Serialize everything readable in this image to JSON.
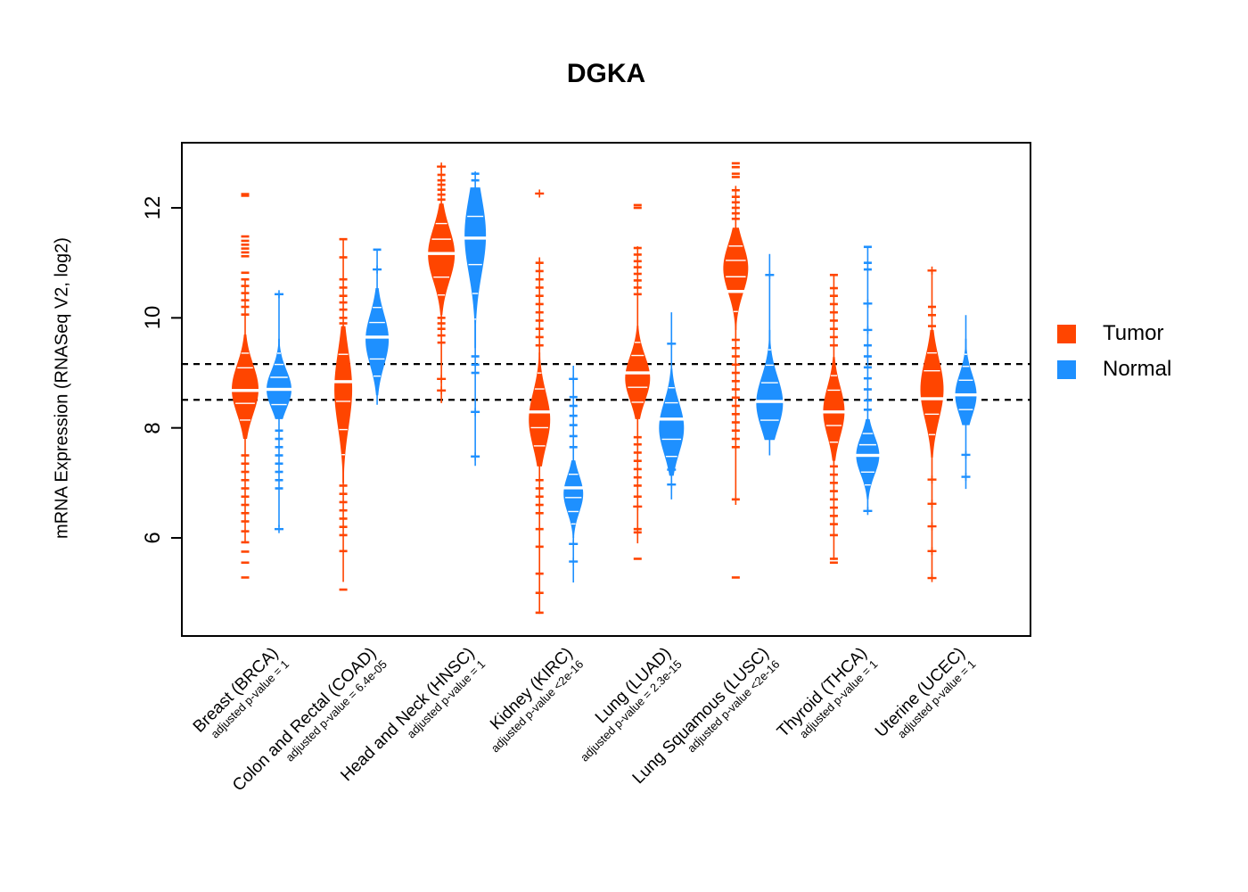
{
  "chart_data": {
    "type": "violin",
    "title": "DGKA",
    "ylabel": "mRNA Expression (RNASeq V2, log2)",
    "yticks": [
      12,
      10,
      8,
      6
    ],
    "ylim": [
      4.2,
      13.2
    ],
    "grid": false,
    "legend_position": "right",
    "reference_lines": [
      9.16,
      8.51
    ],
    "legend": [
      {
        "label": "Tumor",
        "color": "#FF4500"
      },
      {
        "label": "Normal",
        "color": "#1E90FF"
      }
    ],
    "groups": [
      {
        "label": "Breast (BRCA)",
        "pvalue": "adjusted p-value = 1",
        "tumor": {
          "median": 8.68,
          "body": [
            7.8,
            9.7
          ],
          "peak": 8.7,
          "halfWidth": 15,
          "line": [
            5.9,
            10.7
          ],
          "dashes": [
            12.25,
            12.22,
            11.48,
            11.4,
            11.33,
            11.26,
            11.19,
            11.12,
            10.82,
            10.7,
            10.58,
            10.45,
            10.32,
            10.2,
            10.06,
            7.5,
            7.35,
            7.2,
            7.05,
            6.9,
            6.75,
            6.6,
            6.45,
            6.3,
            6.12,
            5.92,
            5.75,
            5.55,
            5.28
          ],
          "plusses": []
        },
        "normal": {
          "median": 8.7,
          "body": [
            8.16,
            9.62
          ],
          "peak": 8.7,
          "halfWidth": 14,
          "line": [
            6.2,
            10.43
          ],
          "dashes": [
            7.95,
            7.8,
            7.65,
            7.5,
            7.35,
            7.2,
            7.05,
            6.9
          ],
          "plusses": [
            10.43,
            6.16
          ]
        }
      },
      {
        "label": "Colon and Rectal (COAD)",
        "pvalue": "adjusted p-value = 6.4e-05",
        "tumor": {
          "median": 8.84,
          "body": [
            7.0,
            9.85
          ],
          "peak": 8.7,
          "halfWidth": 10,
          "line": [
            5.2,
            11.43
          ],
          "dashes": [
            11.43,
            11.1,
            10.7,
            10.55,
            10.4,
            10.28,
            10.15,
            10.0,
            9.9,
            6.95,
            6.8,
            6.65,
            6.5,
            6.35,
            6.2,
            6.05,
            5.76,
            5.06
          ],
          "plusses": []
        },
        "normal": {
          "median": 9.65,
          "body": [
            8.59,
            10.54
          ],
          "peak": 9.6,
          "halfWidth": 13,
          "line": [
            8.42,
            11.24
          ],
          "dashes": [
            11.24
          ],
          "plusses": [
            10.88
          ]
        }
      },
      {
        "label": "Head and Neck (HNSC)",
        "pvalue": "adjusted p-value = 1",
        "tumor": {
          "median": 11.17,
          "body": [
            10.05,
            12.08
          ],
          "peak": 11.15,
          "halfWidth": 15,
          "line": [
            8.45,
            12.78
          ],
          "dashes": [
            12.6,
            12.5,
            12.42,
            12.33,
            12.24,
            12.15,
            10.0,
            9.9,
            9.8,
            9.68,
            9.55
          ],
          "plusses": [
            12.75,
            8.89,
            8.68
          ]
        },
        "normal": {
          "median": 11.45,
          "body": [
            9.45,
            12.37
          ],
          "peak": 11.5,
          "halfWidth": 12,
          "line": [
            7.31,
            12.66
          ],
          "dashes": [
            12.62,
            12.5,
            9.3,
            9.15,
            9.0
          ],
          "plusses": [
            8.29,
            7.48
          ]
        }
      },
      {
        "label": "Kidney (KIRC)",
        "pvalue": "adjusted p-value <2e-16",
        "tumor": {
          "median": 8.29,
          "body": [
            7.3,
            9.37
          ],
          "peak": 8.15,
          "halfWidth": 12,
          "line": [
            4.62,
            11.1
          ],
          "dashes": [
            11.0,
            10.85,
            10.7,
            10.55,
            10.4,
            10.25,
            10.1,
            9.95,
            9.8,
            9.65,
            9.5,
            7.05,
            6.9,
            6.75,
            6.6,
            6.45,
            6.16,
            5.84,
            5.35,
            5.0,
            4.64
          ],
          "plusses": [
            12.26
          ]
        },
        "normal": {
          "median": 6.91,
          "body": [
            6.0,
            7.41
          ],
          "peak": 6.8,
          "halfWidth": 11,
          "line": [
            5.19,
            9.13
          ],
          "dashes": [
            8.56,
            8.4,
            8.22,
            8.05,
            7.85,
            7.65
          ],
          "plusses": [
            8.89,
            5.89,
            5.57
          ]
        }
      },
      {
        "label": "Lung (LUAD)",
        "pvalue": "adjusted p-value = 2.3e-15",
        "tumor": {
          "median": 9.0,
          "body": [
            8.16,
            9.86
          ],
          "peak": 8.9,
          "halfWidth": 14,
          "line": [
            5.9,
            11.3
          ],
          "dashes": [
            12.05,
            12.0,
            11.27,
            11.15,
            11.03,
            10.92,
            10.8,
            10.68,
            10.55,
            10.43,
            7.83,
            7.7,
            7.55,
            7.4,
            7.25,
            7.1,
            6.95,
            6.75,
            6.16,
            6.1,
            5.62
          ],
          "plusses": [
            6.57
          ]
        },
        "normal": {
          "median": 8.16,
          "body": [
            7.13,
            9.08
          ],
          "peak": 8.0,
          "halfWidth": 14,
          "line": [
            6.7,
            10.1
          ],
          "dashes": [],
          "plusses": [
            9.53,
            7.24,
            6.97
          ]
        }
      },
      {
        "label": "Lung Squamous (LUSC)",
        "pvalue": "adjusted p-value <2e-16",
        "tumor": {
          "median": 10.48,
          "body": [
            9.78,
            11.64
          ],
          "peak": 10.9,
          "halfWidth": 14,
          "line": [
            6.6,
            12.4
          ],
          "dashes": [
            12.81,
            12.74,
            12.62,
            12.56,
            12.32,
            12.2,
            12.1,
            12.0,
            11.9,
            11.8,
            9.6,
            9.45,
            9.3,
            9.15,
            9.0,
            8.85,
            8.7,
            8.55,
            8.4,
            8.25,
            8.1,
            7.95,
            7.8,
            7.65,
            6.7,
            5.28
          ],
          "plusses": []
        },
        "normal": {
          "median": 8.48,
          "body": [
            7.78,
            9.78
          ],
          "peak": 8.45,
          "halfWidth": 15,
          "line": [
            7.5,
            11.16
          ],
          "dashes": [],
          "plusses": [
            10.78
          ]
        }
      },
      {
        "label": "Thyroid (THCA)",
        "pvalue": "adjusted p-value = 1",
        "tumor": {
          "median": 8.29,
          "body": [
            7.4,
            9.29
          ],
          "peak": 8.3,
          "halfWidth": 12,
          "line": [
            5.6,
            10.78
          ],
          "dashes": [
            10.78,
            10.54,
            10.4,
            10.25,
            10.1,
            9.95,
            9.8,
            9.65,
            9.5,
            7.3,
            7.15,
            7.0,
            6.85,
            6.7,
            6.55,
            6.4,
            6.25,
            6.05,
            5.62,
            5.55
          ],
          "plusses": []
        },
        "normal": {
          "median": 7.5,
          "body": [
            6.7,
            8.16
          ],
          "peak": 7.5,
          "halfWidth": 13,
          "line": [
            6.49,
            11.29
          ],
          "dashes": [
            11.29,
            11.0,
            10.88,
            9.5,
            9.3,
            9.1,
            8.9,
            8.7,
            8.5,
            8.33
          ],
          "plusses": [
            10.26,
            9.78,
            6.49
          ]
        }
      },
      {
        "label": "Uterine (UCEC)",
        "pvalue": "adjusted p-value = 1",
        "tumor": {
          "median": 8.53,
          "body": [
            7.46,
            9.78
          ],
          "peak": 8.7,
          "halfWidth": 13,
          "line": [
            5.27,
            10.86
          ],
          "dashes": [
            10.2,
            10.05,
            9.85
          ],
          "plusses": [
            10.86,
            7.06,
            6.62,
            6.21,
            5.76,
            5.27
          ]
        },
        "normal": {
          "median": 8.6,
          "body": [
            8.05,
            9.62
          ],
          "peak": 8.6,
          "halfWidth": 12,
          "line": [
            6.89,
            10.05
          ],
          "dashes": [],
          "plusses": [
            7.51,
            7.11
          ]
        }
      }
    ]
  }
}
